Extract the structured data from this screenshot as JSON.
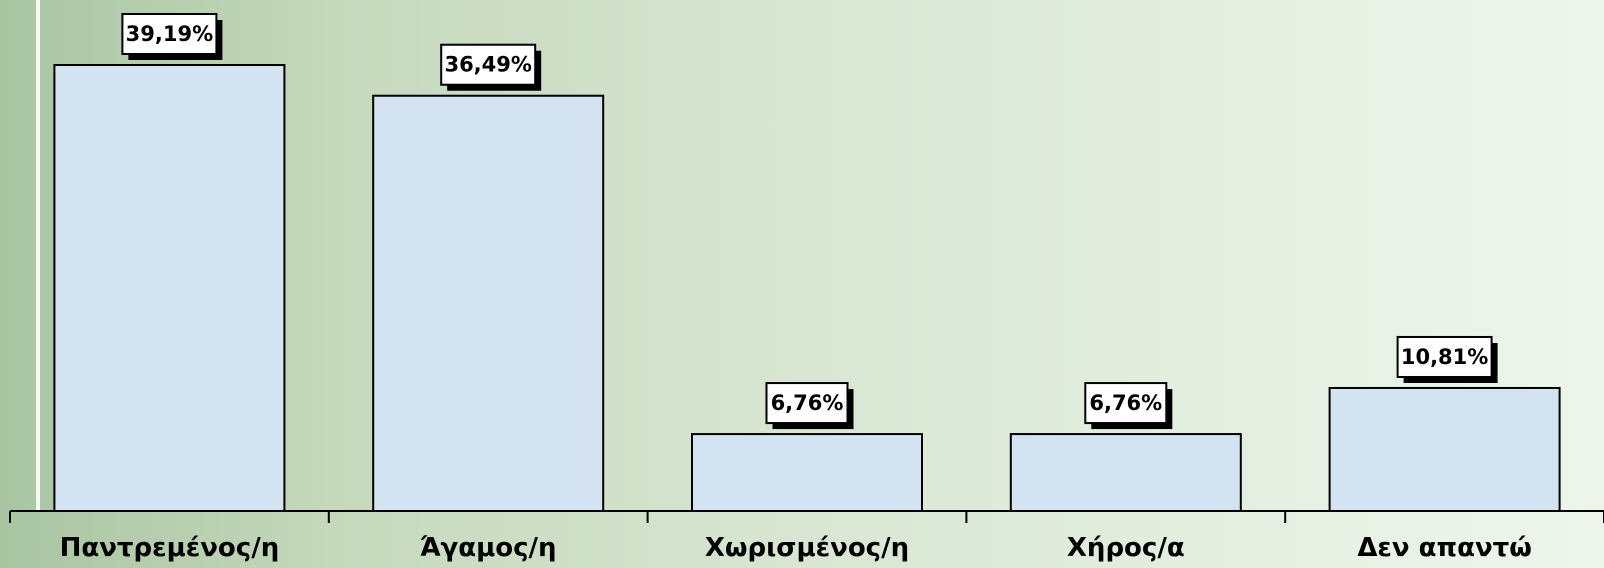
{
  "chart_data": {
    "type": "bar",
    "categories": [
      "Παντρεμένος/η",
      "Άγαμος/η",
      "Χωρισμένος/η",
      "Χήρος/α",
      "Δεν απαντώ"
    ],
    "values": [
      39.19,
      36.49,
      6.76,
      6.76,
      10.81
    ],
    "data_labels": [
      "39,19%",
      "36,49%",
      "6,76%",
      "6,76%",
      "10,81%"
    ],
    "title": "",
    "xlabel": "",
    "ylabel": "",
    "ylim": [
      0,
      40
    ],
    "grid": false,
    "legend": "none"
  },
  "colors": {
    "bar_fill": "#d3e3f1",
    "bar_stroke": "#000000",
    "label_box_fill": "#ffffff",
    "label_shadow": "#000000",
    "axis": "#000000",
    "left_stripe": "#f4f9f1"
  }
}
